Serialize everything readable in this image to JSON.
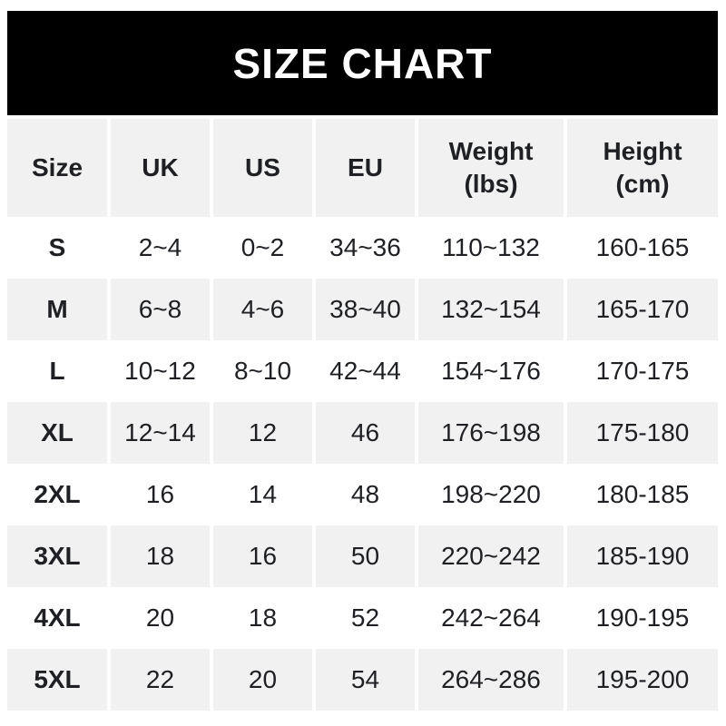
{
  "title_banner": {
    "label": "SIZE CHART",
    "bg_color": "#000000",
    "text_color": "#ffffff"
  },
  "table_headers": [
    {
      "top": "Size"
    },
    {
      "top": "UK"
    },
    {
      "top": "US"
    },
    {
      "top": "EU"
    },
    {
      "top": "Weight",
      "sub": "(lbs)"
    },
    {
      "top": "Height",
      "sub": "(cm)"
    }
  ],
  "chart_data": {
    "type": "table",
    "title": "SIZE CHART",
    "columns": [
      "Size",
      "UK",
      "US",
      "EU",
      "Weight (lbs)",
      "Height (cm)"
    ],
    "rows": [
      [
        "S",
        "2~4",
        "0~2",
        "34~36",
        "110~132",
        "160-165"
      ],
      [
        "M",
        "6~8",
        "4~6",
        "38~40",
        "132~154",
        "165-170"
      ],
      [
        "L",
        "10~12",
        "8~10",
        "42~44",
        "154~176",
        "170-175"
      ],
      [
        "XL",
        "12~14",
        "12",
        "46",
        "176~198",
        "175-180"
      ],
      [
        "2XL",
        "16",
        "14",
        "48",
        "198~220",
        "180-185"
      ],
      [
        "3XL",
        "18",
        "16",
        "50",
        "220~242",
        "185-190"
      ],
      [
        "4XL",
        "20",
        "18",
        "52",
        "242~264",
        "190-195"
      ],
      [
        "5XL",
        "22",
        "20",
        "54",
        "264~286",
        "195-200"
      ]
    ],
    "layout": {
      "shaded_row_indices": [
        1,
        3,
        5,
        7
      ],
      "shade_color": "#f1f1f2",
      "text_color": "#1e2023",
      "banner_color": "#000000"
    }
  }
}
